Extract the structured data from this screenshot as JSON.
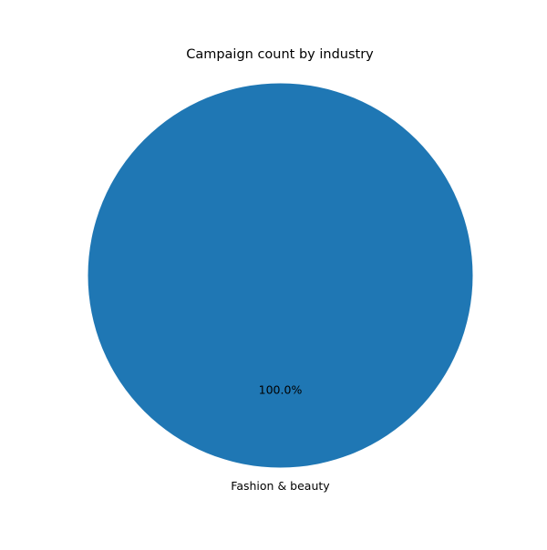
{
  "chart_data": {
    "type": "pie",
    "title": "Campaign count by industry",
    "labels": [
      "Fashion & beauty"
    ],
    "values": [
      1
    ],
    "percent_labels": [
      "100.0%"
    ],
    "colors": [
      "#1f77b4"
    ]
  }
}
